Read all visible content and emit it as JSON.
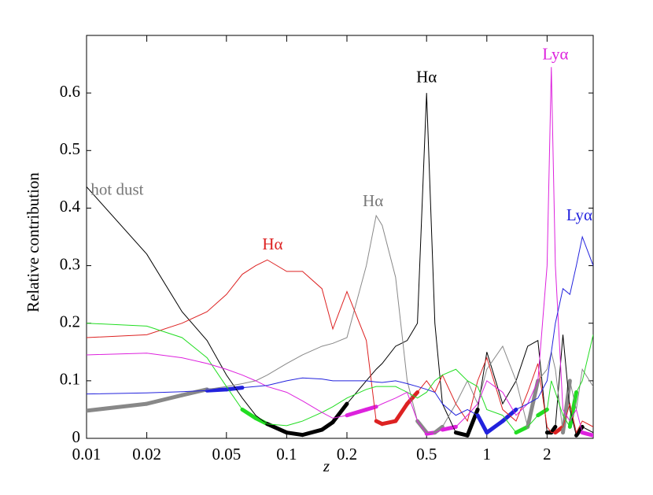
{
  "chart_data": {
    "type": "line",
    "x_label": "z",
    "y_label": "Relative contribution",
    "x_log": true,
    "xlim": [
      0.01,
      3.4
    ],
    "ylim": [
      0,
      0.7
    ],
    "xticks": [
      0.01,
      0.02,
      0.05,
      0.1,
      0.2,
      0.5,
      1,
      2
    ],
    "yticks": [
      0,
      0.1,
      0.2,
      0.3,
      0.4,
      0.5,
      0.6
    ],
    "x": [
      0.01,
      0.02,
      0.03,
      0.04,
      0.05,
      0.06,
      0.07,
      0.08,
      0.1,
      0.12,
      0.15,
      0.17,
      0.2,
      0.25,
      0.28,
      0.3,
      0.35,
      0.4,
      0.45,
      0.5,
      0.55,
      0.6,
      0.7,
      0.8,
      0.9,
      1,
      1.2,
      1.4,
      1.6,
      1.8,
      2,
      2.1,
      2.2,
      2.4,
      2.6,
      2.8,
      3,
      3.4
    ],
    "series": [
      {
        "color": "#000000",
        "values": [
          0.437,
          0.32,
          0.22,
          0.17,
          0.11,
          0.07,
          0.04,
          0.025,
          0.01,
          0.006,
          0.015,
          0.028,
          0.06,
          0.1,
          0.12,
          0.13,
          0.16,
          0.17,
          0.2,
          0.6,
          0.2,
          0.06,
          0.01,
          0.005,
          0.05,
          0.15,
          0.06,
          0.1,
          0.16,
          0.17,
          0.01,
          0.01,
          0.02,
          0.18,
          0.05,
          0.005,
          0.02,
          0.01
        ]
      },
      {
        "color": "#888888",
        "values": [
          0.048,
          0.06,
          0.075,
          0.085,
          0.09,
          0.095,
          0.1,
          0.11,
          0.13,
          0.145,
          0.16,
          0.165,
          0.175,
          0.3,
          0.387,
          0.37,
          0.28,
          0.1,
          0.03,
          0.01,
          0.01,
          0.02,
          0.06,
          0.1,
          0.06,
          0.12,
          0.16,
          0.1,
          0.02,
          0.1,
          0.12,
          0.15,
          0.12,
          0.01,
          0.1,
          0.05,
          0.12,
          0.09
        ]
      },
      {
        "color": "#dd2222",
        "values": [
          0.175,
          0.18,
          0.2,
          0.22,
          0.25,
          0.285,
          0.3,
          0.31,
          0.29,
          0.29,
          0.26,
          0.19,
          0.255,
          0.17,
          0.03,
          0.025,
          0.03,
          0.06,
          0.08,
          0.1,
          0.08,
          0.11,
          0.06,
          0.03,
          0.1,
          0.14,
          0.05,
          0.03,
          0.08,
          0.13,
          0.02,
          0.01,
          0.01,
          0.02,
          0.06,
          0.01,
          0.03,
          0.02
        ]
      },
      {
        "color": "#22dd22",
        "values": [
          0.2,
          0.195,
          0.175,
          0.14,
          0.09,
          0.05,
          0.035,
          0.025,
          0.022,
          0.03,
          0.045,
          0.055,
          0.07,
          0.085,
          0.09,
          0.09,
          0.09,
          0.08,
          0.07,
          0.08,
          0.1,
          0.11,
          0.12,
          0.1,
          0.09,
          0.05,
          0.04,
          0.01,
          0.02,
          0.04,
          0.05,
          0.1,
          0.08,
          0.04,
          0.02,
          0.08,
          0.1,
          0.18
        ]
      },
      {
        "color": "#dd22dd",
        "values": [
          0.145,
          0.148,
          0.14,
          0.13,
          0.12,
          0.11,
          0.1,
          0.09,
          0.08,
          0.065,
          0.045,
          0.035,
          0.04,
          0.05,
          0.055,
          0.06,
          0.07,
          0.08,
          0.03,
          0.008,
          0.01,
          0.015,
          0.02,
          0.04,
          0.06,
          0.1,
          0.08,
          0.04,
          0.06,
          0.1,
          0.3,
          0.645,
          0.3,
          0.05,
          0.03,
          0.05,
          0.01,
          0.005
        ]
      },
      {
        "color": "#2222dd",
        "values": [
          0.077,
          0.079,
          0.081,
          0.083,
          0.085,
          0.088,
          0.09,
          0.092,
          0.1,
          0.105,
          0.103,
          0.1,
          0.1,
          0.1,
          0.098,
          0.097,
          0.1,
          0.095,
          0.09,
          0.085,
          0.08,
          0.06,
          0.04,
          0.05,
          0.04,
          0.01,
          0.03,
          0.05,
          0.06,
          0.07,
          0.1,
          0.15,
          0.2,
          0.26,
          0.25,
          0.3,
          0.35,
          0.3
        ]
      }
    ],
    "annotations": [
      {
        "text": "hot dust",
        "x": 0.0105,
        "y": 0.43,
        "color": "#777777"
      },
      {
        "text": "Hα",
        "x": 0.085,
        "y": 0.335,
        "color": "#dd2222"
      },
      {
        "text": "Hα",
        "x": 0.27,
        "y": 0.41,
        "color": "#777777"
      },
      {
        "text": "Hα",
        "x": 0.5,
        "y": 0.625,
        "color": "#000000"
      },
      {
        "text": "Lyα",
        "x": 2.2,
        "y": 0.665,
        "color": "#dd22dd"
      },
      {
        "text": "Lyα",
        "x": 2.9,
        "y": 0.385,
        "color": "#2222dd"
      }
    ]
  }
}
